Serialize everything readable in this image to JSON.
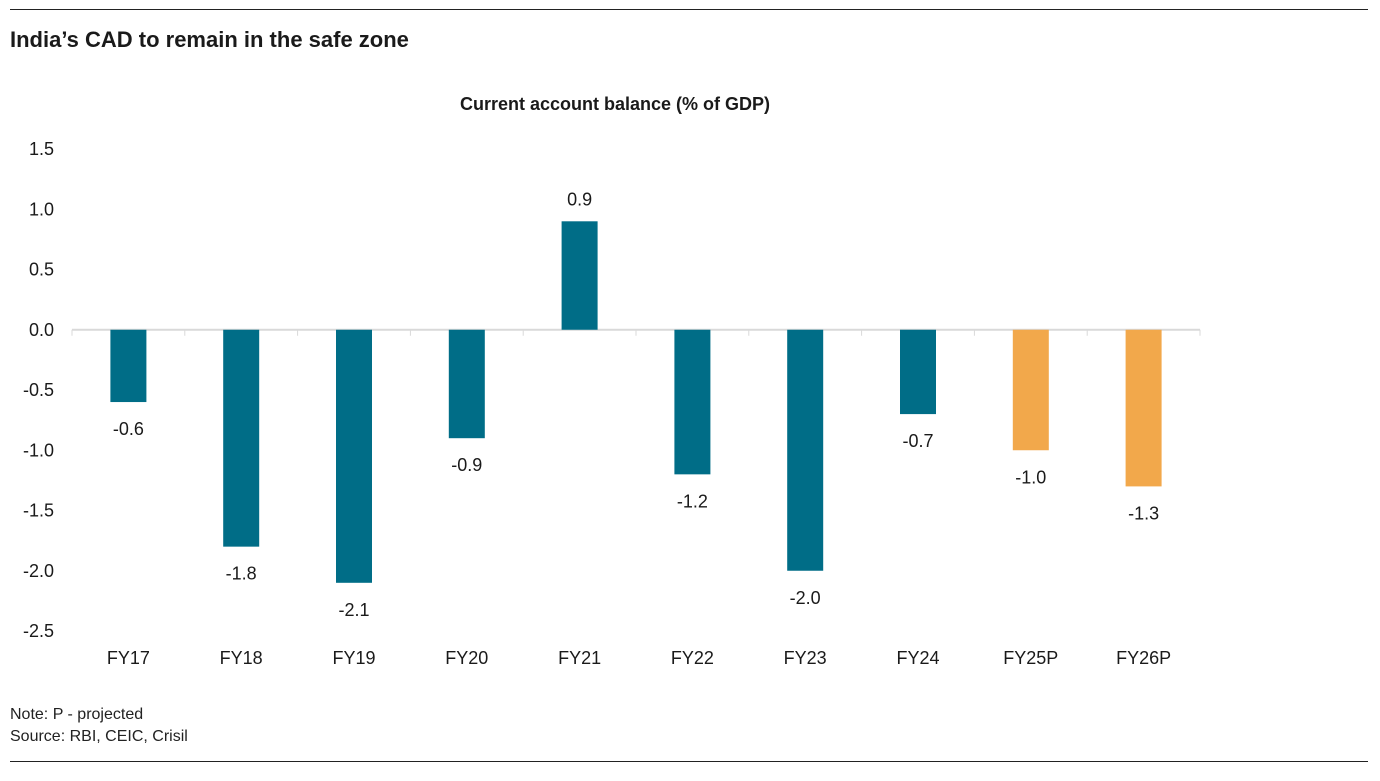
{
  "header": {
    "title": "India’s CAD to remain in the safe zone"
  },
  "chart_data": {
    "type": "bar",
    "title": "Current account balance (% of GDP)",
    "categories": [
      "FY17",
      "FY18",
      "FY19",
      "FY20",
      "FY21",
      "FY22",
      "FY23",
      "FY24",
      "FY25P",
      "FY26P"
    ],
    "values": [
      -0.6,
      -1.8,
      -2.1,
      -0.9,
      0.9,
      -1.2,
      -2.0,
      -0.7,
      -1.0,
      -1.3
    ],
    "data_labels": [
      "-0.6",
      "-1.8",
      "-2.1",
      "-0.9",
      "0.9",
      "-1.2",
      "-2.0",
      "-0.7",
      "-1.0",
      "-1.3"
    ],
    "projected": [
      false,
      false,
      false,
      false,
      false,
      false,
      false,
      false,
      true,
      true
    ],
    "ylim": [
      -2.5,
      1.5
    ],
    "yticks": [
      "1.5",
      "1.0",
      "0.5",
      "0.0",
      "-0.5",
      "-1.0",
      "-1.5",
      "-2.0",
      "-2.5"
    ],
    "ytick_values": [
      1.5,
      1.0,
      0.5,
      0.0,
      -0.5,
      -1.0,
      -1.5,
      -2.0,
      -2.5
    ],
    "xlabel": "",
    "ylabel": "",
    "grid": false,
    "colors": {
      "actual": "#006d87",
      "projected": "#f2a84b",
      "axis": "#d9d9d9"
    }
  },
  "footer": {
    "note": "Note: P - projected",
    "source": "Source: RBI, CEIC, Crisil"
  }
}
